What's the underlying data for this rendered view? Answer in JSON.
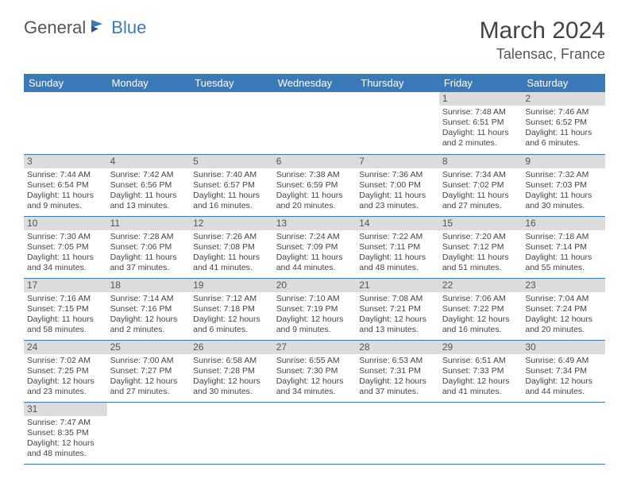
{
  "logo": {
    "part1": "General",
    "part2": "Blue"
  },
  "title": "March 2024",
  "location": "Talensac, France",
  "header_color": "#3a7ab8",
  "day_bar_color": "#dcdcdc",
  "text_color": "#444444",
  "daynames": [
    "Sunday",
    "Monday",
    "Tuesday",
    "Wednesday",
    "Thursday",
    "Friday",
    "Saturday"
  ],
  "weeks": [
    [
      null,
      null,
      null,
      null,
      null,
      {
        "n": "1",
        "sr": "Sunrise: 7:48 AM",
        "ss": "Sunset: 6:51 PM",
        "dl": "Daylight: 11 hours and 2 minutes."
      },
      {
        "n": "2",
        "sr": "Sunrise: 7:46 AM",
        "ss": "Sunset: 6:52 PM",
        "dl": "Daylight: 11 hours and 6 minutes."
      }
    ],
    [
      {
        "n": "3",
        "sr": "Sunrise: 7:44 AM",
        "ss": "Sunset: 6:54 PM",
        "dl": "Daylight: 11 hours and 9 minutes."
      },
      {
        "n": "4",
        "sr": "Sunrise: 7:42 AM",
        "ss": "Sunset: 6:56 PM",
        "dl": "Daylight: 11 hours and 13 minutes."
      },
      {
        "n": "5",
        "sr": "Sunrise: 7:40 AM",
        "ss": "Sunset: 6:57 PM",
        "dl": "Daylight: 11 hours and 16 minutes."
      },
      {
        "n": "6",
        "sr": "Sunrise: 7:38 AM",
        "ss": "Sunset: 6:59 PM",
        "dl": "Daylight: 11 hours and 20 minutes."
      },
      {
        "n": "7",
        "sr": "Sunrise: 7:36 AM",
        "ss": "Sunset: 7:00 PM",
        "dl": "Daylight: 11 hours and 23 minutes."
      },
      {
        "n": "8",
        "sr": "Sunrise: 7:34 AM",
        "ss": "Sunset: 7:02 PM",
        "dl": "Daylight: 11 hours and 27 minutes."
      },
      {
        "n": "9",
        "sr": "Sunrise: 7:32 AM",
        "ss": "Sunset: 7:03 PM",
        "dl": "Daylight: 11 hours and 30 minutes."
      }
    ],
    [
      {
        "n": "10",
        "sr": "Sunrise: 7:30 AM",
        "ss": "Sunset: 7:05 PM",
        "dl": "Daylight: 11 hours and 34 minutes."
      },
      {
        "n": "11",
        "sr": "Sunrise: 7:28 AM",
        "ss": "Sunset: 7:06 PM",
        "dl": "Daylight: 11 hours and 37 minutes."
      },
      {
        "n": "12",
        "sr": "Sunrise: 7:26 AM",
        "ss": "Sunset: 7:08 PM",
        "dl": "Daylight: 11 hours and 41 minutes."
      },
      {
        "n": "13",
        "sr": "Sunrise: 7:24 AM",
        "ss": "Sunset: 7:09 PM",
        "dl": "Daylight: 11 hours and 44 minutes."
      },
      {
        "n": "14",
        "sr": "Sunrise: 7:22 AM",
        "ss": "Sunset: 7:11 PM",
        "dl": "Daylight: 11 hours and 48 minutes."
      },
      {
        "n": "15",
        "sr": "Sunrise: 7:20 AM",
        "ss": "Sunset: 7:12 PM",
        "dl": "Daylight: 11 hours and 51 minutes."
      },
      {
        "n": "16",
        "sr": "Sunrise: 7:18 AM",
        "ss": "Sunset: 7:14 PM",
        "dl": "Daylight: 11 hours and 55 minutes."
      }
    ],
    [
      {
        "n": "17",
        "sr": "Sunrise: 7:16 AM",
        "ss": "Sunset: 7:15 PM",
        "dl": "Daylight: 11 hours and 58 minutes."
      },
      {
        "n": "18",
        "sr": "Sunrise: 7:14 AM",
        "ss": "Sunset: 7:16 PM",
        "dl": "Daylight: 12 hours and 2 minutes."
      },
      {
        "n": "19",
        "sr": "Sunrise: 7:12 AM",
        "ss": "Sunset: 7:18 PM",
        "dl": "Daylight: 12 hours and 6 minutes."
      },
      {
        "n": "20",
        "sr": "Sunrise: 7:10 AM",
        "ss": "Sunset: 7:19 PM",
        "dl": "Daylight: 12 hours and 9 minutes."
      },
      {
        "n": "21",
        "sr": "Sunrise: 7:08 AM",
        "ss": "Sunset: 7:21 PM",
        "dl": "Daylight: 12 hours and 13 minutes."
      },
      {
        "n": "22",
        "sr": "Sunrise: 7:06 AM",
        "ss": "Sunset: 7:22 PM",
        "dl": "Daylight: 12 hours and 16 minutes."
      },
      {
        "n": "23",
        "sr": "Sunrise: 7:04 AM",
        "ss": "Sunset: 7:24 PM",
        "dl": "Daylight: 12 hours and 20 minutes."
      }
    ],
    [
      {
        "n": "24",
        "sr": "Sunrise: 7:02 AM",
        "ss": "Sunset: 7:25 PM",
        "dl": "Daylight: 12 hours and 23 minutes."
      },
      {
        "n": "25",
        "sr": "Sunrise: 7:00 AM",
        "ss": "Sunset: 7:27 PM",
        "dl": "Daylight: 12 hours and 27 minutes."
      },
      {
        "n": "26",
        "sr": "Sunrise: 6:58 AM",
        "ss": "Sunset: 7:28 PM",
        "dl": "Daylight: 12 hours and 30 minutes."
      },
      {
        "n": "27",
        "sr": "Sunrise: 6:55 AM",
        "ss": "Sunset: 7:30 PM",
        "dl": "Daylight: 12 hours and 34 minutes."
      },
      {
        "n": "28",
        "sr": "Sunrise: 6:53 AM",
        "ss": "Sunset: 7:31 PM",
        "dl": "Daylight: 12 hours and 37 minutes."
      },
      {
        "n": "29",
        "sr": "Sunrise: 6:51 AM",
        "ss": "Sunset: 7:33 PM",
        "dl": "Daylight: 12 hours and 41 minutes."
      },
      {
        "n": "30",
        "sr": "Sunrise: 6:49 AM",
        "ss": "Sunset: 7:34 PM",
        "dl": "Daylight: 12 hours and 44 minutes."
      }
    ],
    [
      {
        "n": "31",
        "sr": "Sunrise: 7:47 AM",
        "ss": "Sunset: 8:35 PM",
        "dl": "Daylight: 12 hours and 48 minutes."
      },
      null,
      null,
      null,
      null,
      null,
      null
    ]
  ]
}
